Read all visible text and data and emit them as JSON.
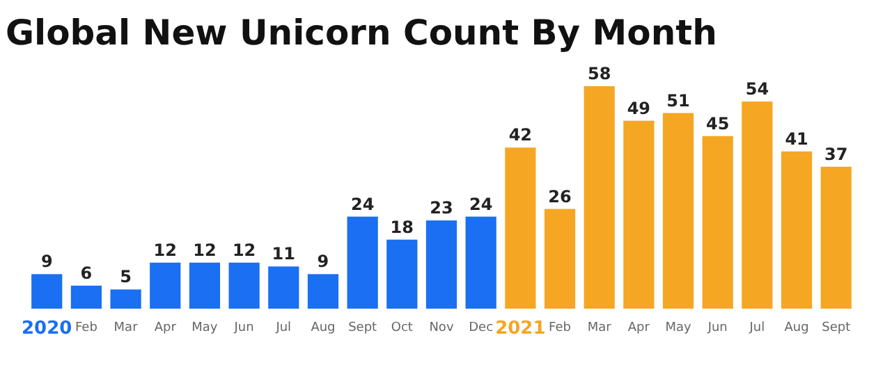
{
  "chart_data": {
    "type": "bar",
    "title": "Global New Unicorn Count By Month",
    "categories": [
      "2020",
      "Feb",
      "Mar",
      "Apr",
      "May",
      "Jun",
      "Jul",
      "Aug",
      "Sept",
      "Oct",
      "Nov",
      "Dec",
      "2021",
      "Feb",
      "Mar",
      "Apr",
      "May",
      "Jun",
      "Jul",
      "Aug",
      "Sept"
    ],
    "values": [
      9,
      6,
      5,
      12,
      12,
      12,
      11,
      9,
      24,
      18,
      23,
      24,
      42,
      26,
      58,
      49,
      51,
      45,
      54,
      41,
      37
    ],
    "colors": [
      "#1a6ff2",
      "#1a6ff2",
      "#1a6ff2",
      "#1a6ff2",
      "#1a6ff2",
      "#1a6ff2",
      "#1a6ff2",
      "#1a6ff2",
      "#1a6ff2",
      "#1a6ff2",
      "#1a6ff2",
      "#1a6ff2",
      "#f5a623",
      "#f5a623",
      "#f5a623",
      "#f5a623",
      "#f5a623",
      "#f5a623",
      "#f5a623",
      "#f5a623",
      "#f5a623"
    ],
    "data_labels": true
  }
}
